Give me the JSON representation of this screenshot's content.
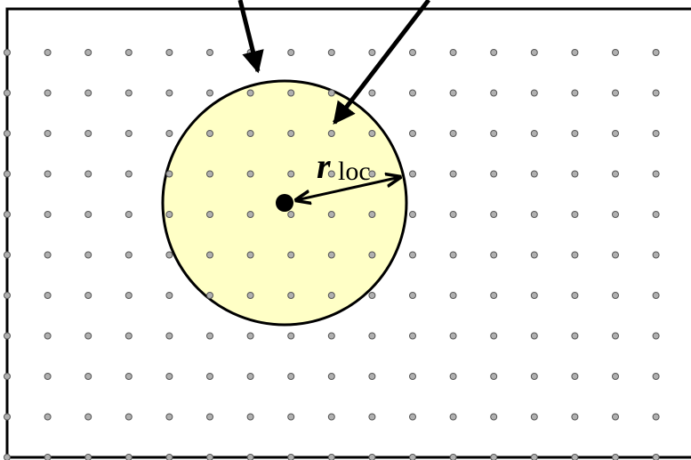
{
  "label": {
    "main": "r",
    "subscript": "loc"
  }
}
